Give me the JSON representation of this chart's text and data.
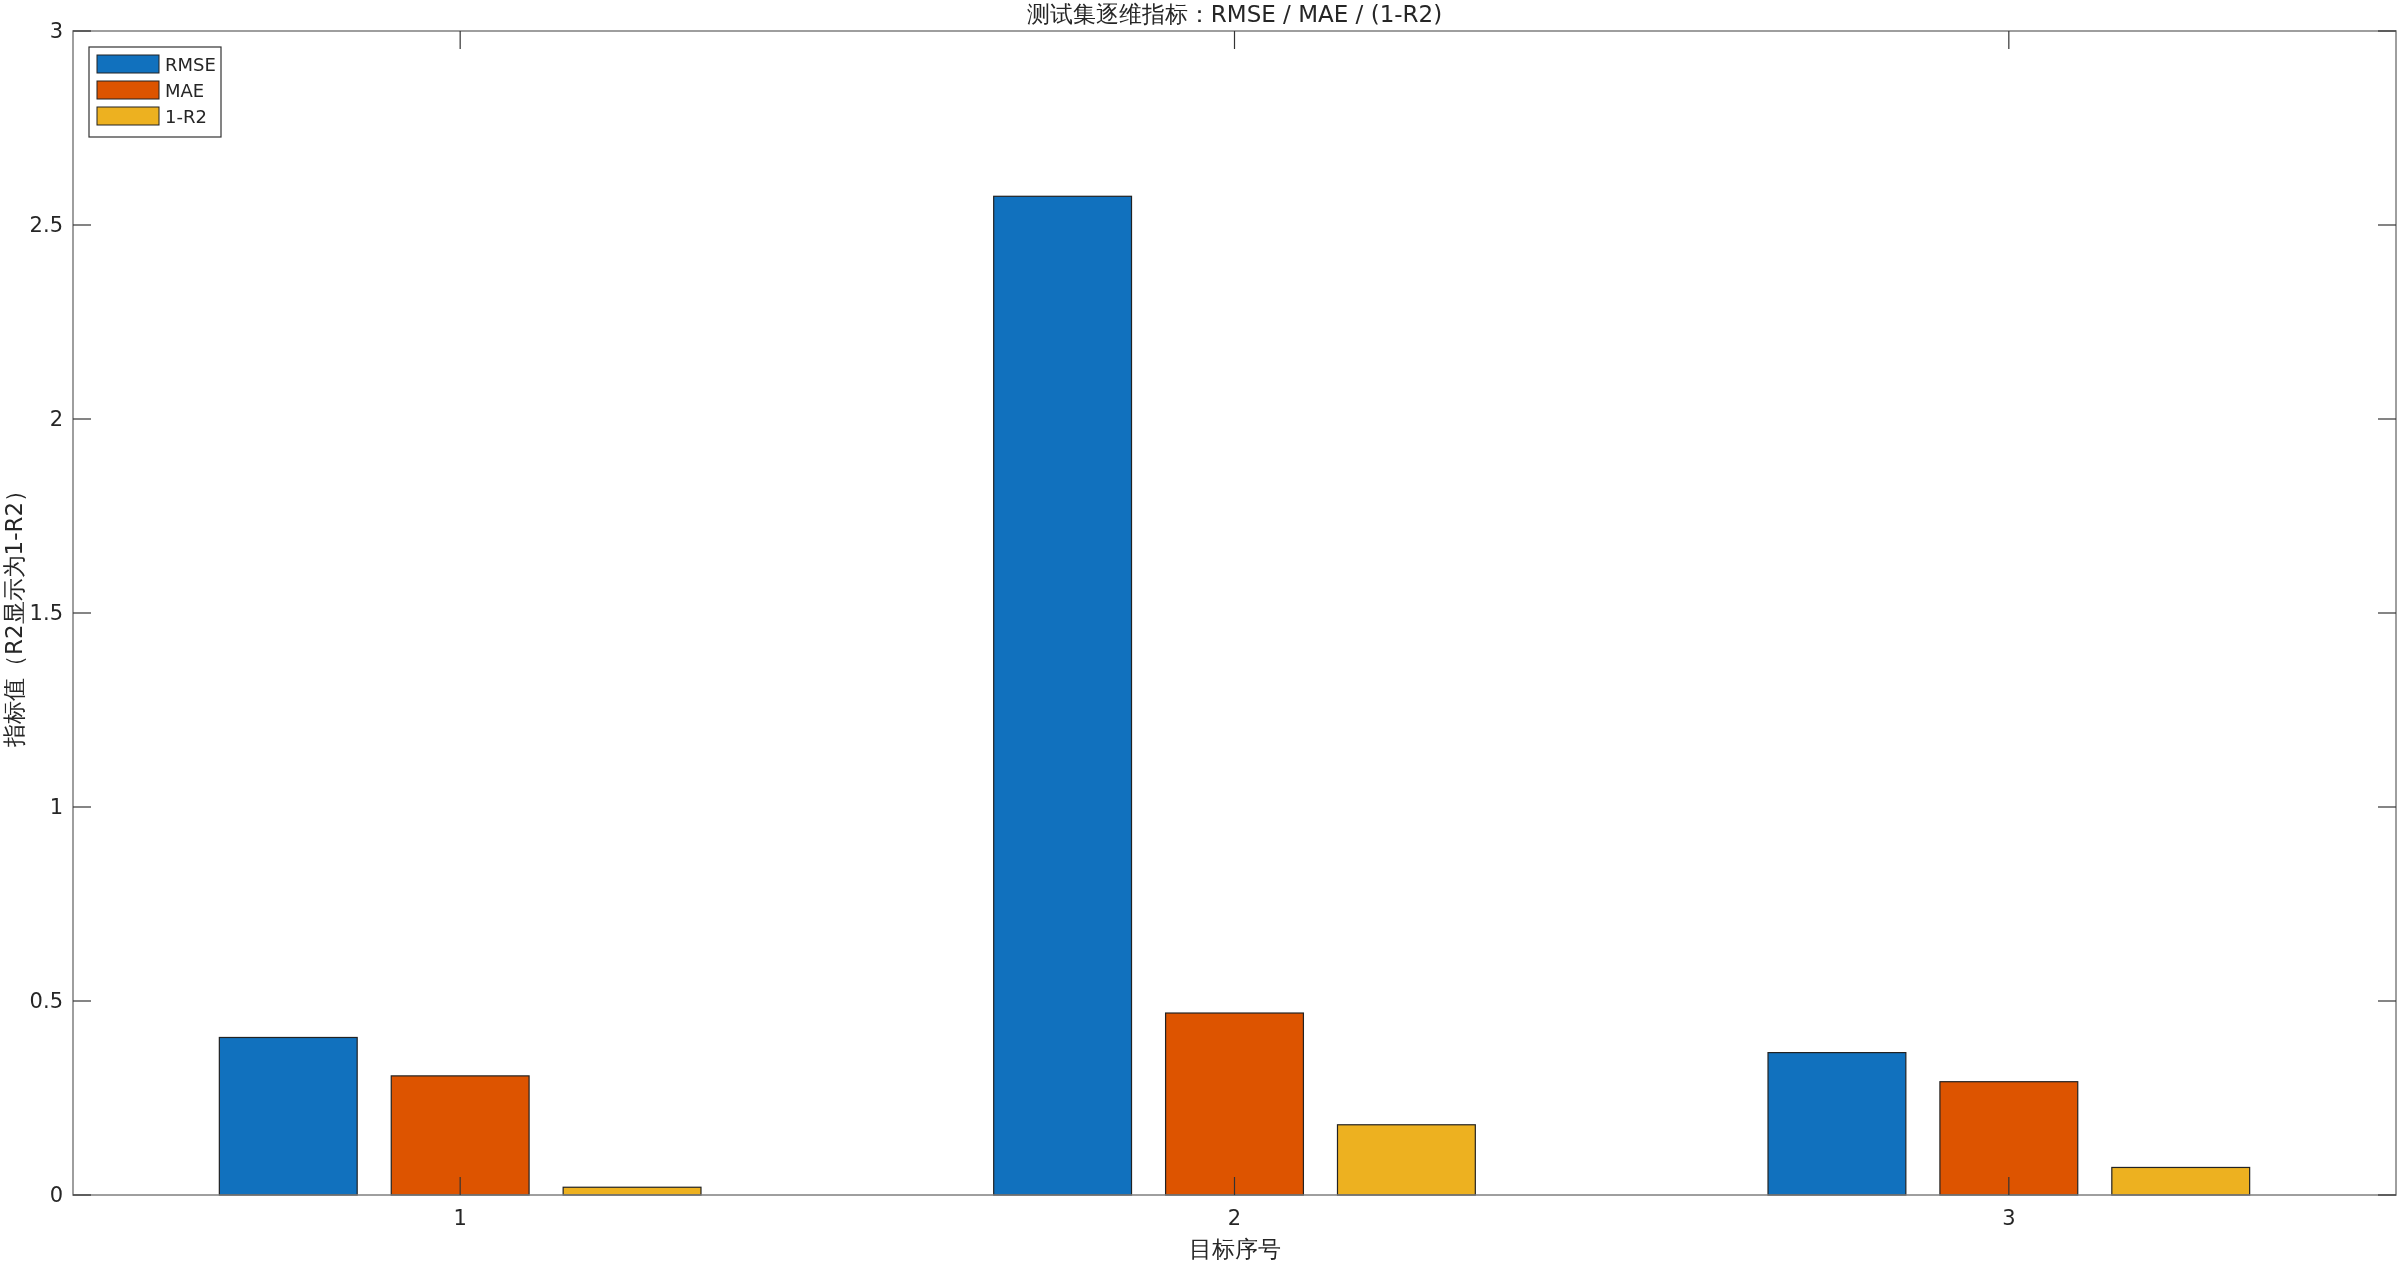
{
  "chart_data": {
    "type": "bar",
    "title": "测试集逐维指标：RMSE / MAE / (1-R2)",
    "xlabel": "目标序号",
    "ylabel": "指标值（R2显示为1-R2）",
    "categories": [
      "1",
      "2",
      "3"
    ],
    "series": [
      {
        "name": "RMSE",
        "color": "#1171be",
        "values": [
          0.406,
          2.574,
          0.367
        ]
      },
      {
        "name": "MAE",
        "color": "#dd5400",
        "values": [
          0.307,
          0.469,
          0.292
        ]
      },
      {
        "name": "1-R2",
        "color": "#edb120",
        "values": [
          0.02,
          0.181,
          0.071
        ]
      }
    ],
    "ylim": [
      0,
      3
    ],
    "yticks": [
      0,
      0.5,
      1,
      1.5,
      2,
      2.5,
      3
    ],
    "grid": false,
    "legend": "top left"
  }
}
